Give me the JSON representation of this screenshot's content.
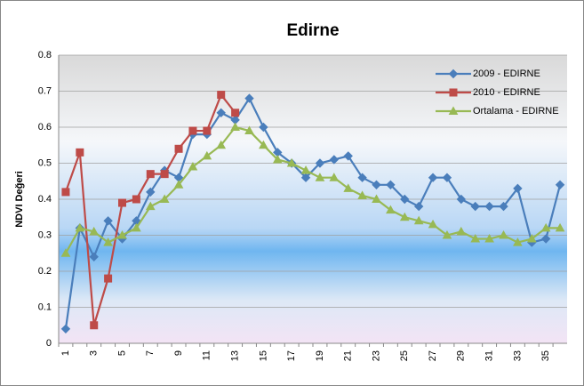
{
  "chart_data": {
    "type": "line",
    "title": "Edirne",
    "y_label": "NDVI Değeri",
    "categories": [
      1,
      null,
      3,
      null,
      5,
      null,
      7,
      null,
      9,
      null,
      11,
      null,
      13,
      null,
      15,
      null,
      17,
      null,
      19,
      null,
      21,
      null,
      23,
      null,
      25,
      null,
      27,
      null,
      29,
      null,
      31,
      null,
      33,
      null,
      35,
      null
    ],
    "series": [
      {
        "name": "2009 - EDIRNE",
        "color": "#4a7ebb",
        "marker": "diamond",
        "values": [
          0.04,
          0.32,
          0.24,
          0.34,
          0.29,
          0.34,
          0.42,
          0.48,
          0.46,
          0.58,
          0.58,
          0.64,
          0.62,
          0.68,
          0.6,
          0.53,
          0.5,
          0.46,
          0.5,
          0.51,
          0.52,
          0.46,
          0.44,
          0.44,
          0.4,
          0.38,
          0.46,
          0.46,
          0.4,
          0.38,
          0.38,
          0.38,
          0.43,
          0.28,
          0.29,
          0.44
        ]
      },
      {
        "name": "2010 - EDIRNE",
        "color": "#be4b48",
        "marker": "square",
        "values": [
          0.42,
          0.53,
          0.05,
          0.18,
          0.39,
          0.4,
          0.47,
          0.47,
          0.54,
          0.59,
          0.59,
          0.69,
          0.64,
          null,
          null,
          null,
          null,
          null,
          null,
          null,
          null,
          null,
          null,
          null,
          null,
          null,
          null,
          null,
          null,
          null,
          null,
          null,
          null,
          null,
          null,
          null
        ]
      },
      {
        "name": "Ortalama - EDIRNE",
        "color": "#98b954",
        "marker": "triangle",
        "values": [
          0.25,
          0.32,
          0.31,
          0.28,
          0.3,
          0.32,
          0.38,
          0.4,
          0.44,
          0.49,
          0.52,
          0.55,
          0.6,
          0.59,
          0.55,
          0.51,
          0.5,
          0.48,
          0.46,
          0.46,
          0.43,
          0.41,
          0.4,
          0.37,
          0.35,
          0.34,
          0.33,
          0.3,
          0.31,
          0.29,
          0.29,
          0.3,
          0.28,
          0.29,
          0.32,
          0.32
        ]
      }
    ],
    "ylim": [
      0,
      0.8
    ],
    "yticks": [
      0,
      0.1,
      0.2,
      0.3,
      0.4,
      0.5,
      0.6,
      0.7,
      0.8
    ],
    "grid": true,
    "legend": "top-right"
  }
}
